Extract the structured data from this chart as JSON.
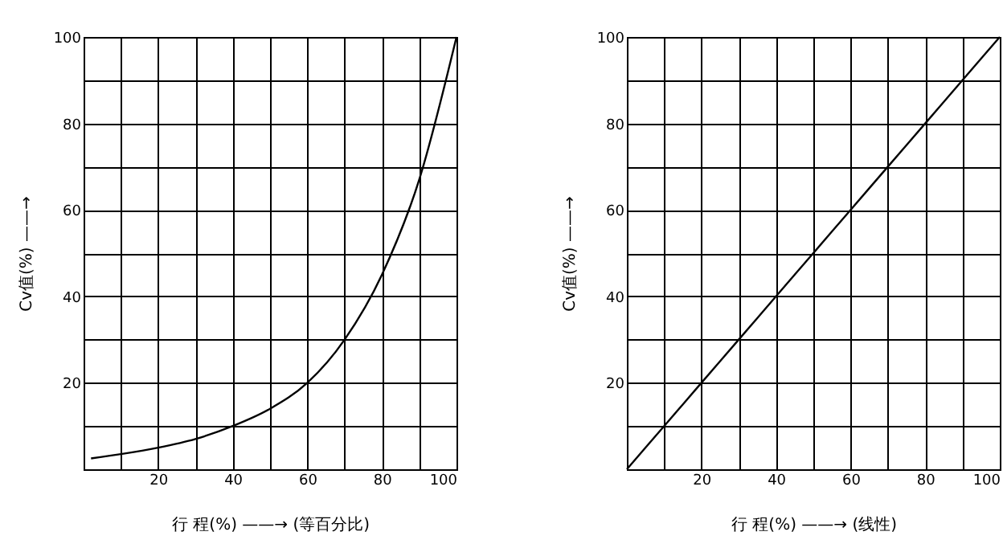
{
  "chart_data": [
    {
      "type": "line",
      "xlabel": "行  程(%) ——→ (等百分比)",
      "ylabel": "Cv值(%) ——→",
      "grid": true,
      "xlim": [
        0,
        100
      ],
      "ylim": [
        0,
        100
      ],
      "xticks": [
        {
          "value": 10,
          "label": null
        },
        20,
        {
          "value": 30,
          "label": null
        },
        40,
        {
          "value": 50,
          "label": null
        },
        60,
        {
          "value": 70,
          "label": null
        },
        80,
        {
          "value": 90,
          "label": null
        },
        100
      ],
      "yticks": [
        {
          "value": 10,
          "label": null
        },
        20,
        {
          "value": 30,
          "label": null
        },
        40,
        {
          "value": 50,
          "label": null
        },
        60,
        {
          "value": 70,
          "label": null
        },
        80,
        {
          "value": 90,
          "label": null
        },
        100
      ],
      "x": [
        2,
        10,
        20,
        30,
        40,
        50,
        60,
        70,
        80,
        90,
        100
      ],
      "series": [
        {
          "color": "#000000",
          "values": [
            2.5,
            3.5,
            5,
            7,
            10,
            14,
            20,
            30,
            45,
            67,
            100
          ]
        }
      ]
    },
    {
      "type": "line",
      "xlabel": "行  程(%) ——→ (线性)",
      "ylabel": "Cv值(%) ——→",
      "grid": true,
      "xlim": [
        0,
        100
      ],
      "ylim": [
        0,
        100
      ],
      "xticks": [
        {
          "value": 10,
          "label": null
        },
        20,
        {
          "value": 30,
          "label": null
        },
        40,
        {
          "value": 50,
          "label": null
        },
        60,
        {
          "value": 70,
          "label": null
        },
        80,
        {
          "value": 90,
          "label": null
        },
        100
      ],
      "yticks": [
        {
          "value": 10,
          "label": null
        },
        20,
        {
          "value": 30,
          "label": null
        },
        40,
        {
          "value": 50,
          "label": null
        },
        60,
        {
          "value": 70,
          "label": null
        },
        80,
        {
          "value": 90,
          "label": null
        },
        100
      ],
      "x": [
        0,
        10,
        20,
        30,
        40,
        50,
        60,
        70,
        80,
        90,
        100
      ],
      "series": [
        {
          "color": "#000000",
          "values": [
            0,
            10,
            20,
            30,
            40,
            50,
            60,
            70,
            80,
            90,
            100
          ]
        }
      ]
    }
  ]
}
